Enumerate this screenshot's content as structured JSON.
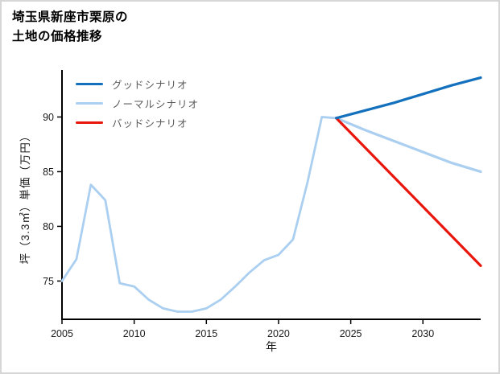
{
  "title": {
    "line1": "埼玉県新座市栗原の",
    "line2": "土地の価格推移"
  },
  "axes": {
    "x_label": "年",
    "y_label": "坪（3.3㎡）単価（万円）"
  },
  "legend": [
    {
      "label": "グッドシナリオ",
      "color": "#1370bd"
    },
    {
      "label": "ノーマルシナリオ",
      "color": "#abcff0"
    },
    {
      "label": "バッドシナリオ",
      "color": "#e8160c"
    }
  ],
  "chart_data": {
    "type": "line",
    "title": "埼玉県新座市栗原の土地の価格推移",
    "xlabel": "年",
    "ylabel": "坪（3.3㎡）単価（万円）",
    "xlim": [
      2005,
      2034
    ],
    "ylim": [
      71.5,
      94.3
    ],
    "xticks": [
      2005,
      2010,
      2015,
      2020,
      2025,
      2030
    ],
    "yticks": [
      75,
      80,
      85,
      90
    ],
    "grid": false,
    "legend_position": "top-left-inside",
    "axis_color": "#000000",
    "series": [
      {
        "name": "",
        "role": "history",
        "color": "#abcff0",
        "width": 2.8,
        "x": [
          2005,
          2006,
          2007,
          2008,
          2009,
          2010,
          2011,
          2012,
          2013,
          2014,
          2015,
          2016,
          2017,
          2018,
          2019,
          2020,
          2021,
          2022,
          2023,
          2024
        ],
        "values": [
          75.0,
          77.0,
          83.8,
          82.4,
          74.8,
          74.5,
          73.3,
          72.5,
          72.2,
          72.2,
          72.5,
          73.3,
          74.5,
          75.8,
          76.9,
          77.4,
          78.8,
          84.0,
          90.0,
          89.9
        ]
      },
      {
        "name": "ノーマルシナリオ",
        "role": "normal",
        "color": "#abcff0",
        "width": 3.2,
        "x": [
          2024,
          2026,
          2028,
          2030,
          2032,
          2034
        ],
        "values": [
          89.9,
          88.8,
          87.8,
          86.8,
          85.8,
          85.0
        ]
      },
      {
        "name": "バッドシナリオ",
        "role": "bad",
        "color": "#e8160c",
        "width": 3.2,
        "x": [
          2024,
          2034
        ],
        "values": [
          89.9,
          76.4
        ]
      },
      {
        "name": "グッドシナリオ",
        "role": "good",
        "color": "#1370bd",
        "width": 3.2,
        "x": [
          2024,
          2026,
          2028,
          2030,
          2032,
          2034
        ],
        "values": [
          89.9,
          90.6,
          91.3,
          92.1,
          92.9,
          93.6
        ]
      }
    ]
  }
}
